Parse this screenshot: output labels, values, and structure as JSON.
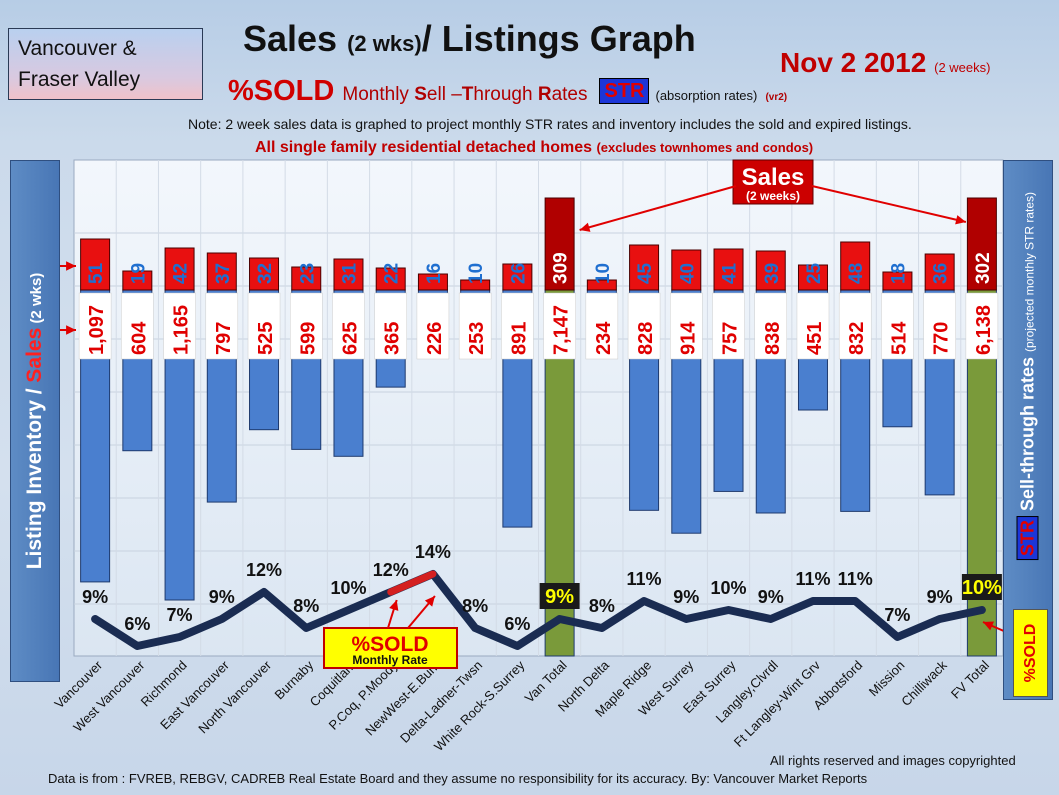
{
  "header": {
    "region_line1": "Vancouver &",
    "region_line2": "Fraser Valley",
    "title_a": "Sales ",
    "title_b": "(2 wks)",
    "title_c": "/ Listings Graph",
    "date": "Nov 2 2012",
    "date_suffix": "(2 weeks)",
    "sold_label": "%SOLD",
    "sell_through_m": "Monthly ",
    "sell_through_s": "S",
    "sell_through_ell": "ell –",
    "sell_through_t": "T",
    "sell_through_hrough": "hrough ",
    "sell_through_r": "R",
    "sell_through_ates": "ates",
    "str_badge": "STR",
    "absorption": "(absorption rates)",
    "version": "(vr2)",
    "note": "Note: 2 week sales data is graphed to project monthly STR rates and inventory includes the sold and expired listings.",
    "subtitle_main": "All single family residential detached homes ",
    "subtitle_small": "(excludes townhomes and condos)"
  },
  "left_axis": {
    "listing": "Listing Inventory ",
    "slash": "/ ",
    "sales": "Sales",
    "suffix": " (2 wks)"
  },
  "right_axis": {
    "str": "STR",
    "text": " Sell-through rates ",
    "small": "(projected monthly STR rates)",
    "sold": "%SOLD"
  },
  "callouts": {
    "sales": "Sales",
    "sales_sub": "(2 weeks)",
    "sold": "%SOLD",
    "sold_sub": "Monthly Rate"
  },
  "footer": {
    "rights": "All rights reserved and  images copyrighted",
    "source": "Data is  from : FVREB, REBGV, CADREB Real Estate Board and they assume no responsibility  for its accuracy. By: Vancouver Market Reports"
  },
  "colors": {
    "listing_bar": "#4a7fcf",
    "total_bar": "#7a9a3a",
    "sales_bar": "#e81010",
    "total_sales_bar": "#b00000",
    "str_line": "#1a2c52",
    "sales_label": "#1f6fd0"
  },
  "chart_data": {
    "type": "bar",
    "categories": [
      "Vancouver",
      "West Vancouver",
      "Richmond",
      "East Vancouver",
      "North Vancouver",
      "Burnaby",
      "Coquitlam",
      "P.Coq, P.Moody",
      "NewWest-E.Burn",
      "Delta-Ladner-Twsn",
      "White Rock-S.Surrey",
      "Van Total",
      "North Delta",
      "Maple Ridge",
      "West Surrey",
      "East Surrey",
      "Langley,Clvrdl",
      "Ft Langley-Wint Grv",
      "Abbotsford",
      "Mission",
      "Chilliwack",
      "FV Total"
    ],
    "series": [
      {
        "name": "Listing Inventory",
        "values": [
          1097,
          604,
          1165,
          797,
          525,
          599,
          625,
          365,
          226,
          253,
          891,
          7147,
          234,
          828,
          914,
          757,
          838,
          451,
          832,
          514,
          770,
          6138
        ],
        "labels": [
          "1,097",
          "604",
          "1,165",
          "797",
          "525",
          "599",
          "625",
          "365",
          "226",
          "253",
          "891",
          "7,147",
          "234",
          "828",
          "914",
          "757",
          "838",
          "451",
          "832",
          "514",
          "770",
          "6,138"
        ]
      },
      {
        "name": "Sales",
        "values": [
          51,
          19,
          42,
          37,
          32,
          23,
          31,
          22,
          16,
          10,
          26,
          309,
          10,
          45,
          40,
          41,
          39,
          25,
          48,
          18,
          36,
          302
        ]
      },
      {
        "name": "%SOLD",
        "values": [
          9,
          6,
          7,
          9,
          12,
          8,
          10,
          12,
          14,
          8,
          6,
          9,
          8,
          11,
          9,
          10,
          9,
          11,
          11,
          7,
          9,
          10
        ],
        "labels": [
          "9%",
          "6%",
          "7%",
          "9%",
          "12%",
          "8%",
          "10%",
          "12%",
          "14%",
          "8%",
          "6%",
          "9%",
          "8%",
          "11%",
          "9%",
          "10%",
          "9%",
          "11%",
          "11%",
          "7%",
          "9%",
          "10%"
        ]
      }
    ],
    "totals": [
      "Van Total",
      "FV Total"
    ],
    "grid": true
  }
}
